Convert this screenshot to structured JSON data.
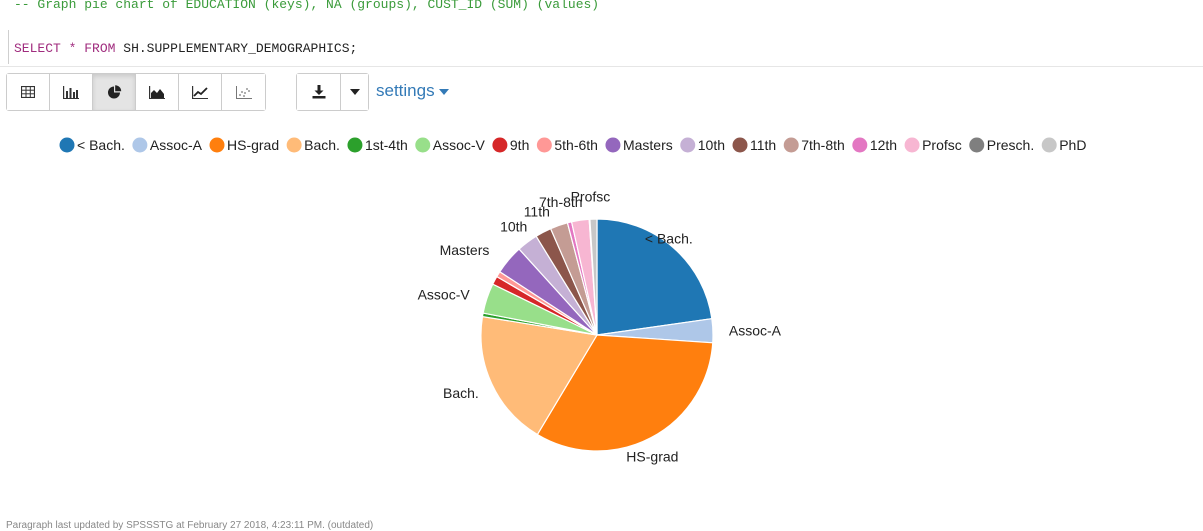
{
  "editor": {
    "comment": "-- Graph pie chart of EDUCATION (keys), NA (groups), CUST_ID (SUM) (values)",
    "select_keyword": "SELECT",
    "select_star": "*",
    "from_keyword": "FROM",
    "table_name": "SH.SUPPLEMENTARY_DEMOGRAPHICS",
    "terminator": ";"
  },
  "toolbar": {
    "view_buttons": [
      {
        "name": "table-view-button",
        "icon": "table-icon",
        "active": false
      },
      {
        "name": "bar-chart-button",
        "icon": "bar-chart-icon",
        "active": false
      },
      {
        "name": "pie-chart-button",
        "icon": "pie-chart-icon",
        "active": true
      },
      {
        "name": "area-chart-button",
        "icon": "area-chart-icon",
        "active": false
      },
      {
        "name": "line-chart-button",
        "icon": "line-chart-icon",
        "active": false
      },
      {
        "name": "scatter-chart-button",
        "icon": "scatter-chart-icon",
        "active": false
      }
    ],
    "download_icon": "download-icon",
    "dropdown_icon": "caret-down-icon",
    "settings_label": "settings"
  },
  "footer": {
    "text": "Paragraph last updated by SPSSSTG at February 27 2018, 4:23:11 PM. (outdated)"
  },
  "chart_data": {
    "type": "pie",
    "categories": [
      "< Bach.",
      "Assoc-A",
      "HS-grad",
      "Bach.",
      "1st-4th",
      "Assoc-V",
      "9th",
      "5th-6th",
      "Masters",
      "10th",
      "11th",
      "7th-8th",
      "12th",
      "Profsc",
      "Presch.",
      "PhD"
    ],
    "values": [
      23.3,
      3.4,
      33.3,
      19.4,
      0.5,
      4.3,
      1.2,
      0.8,
      4.2,
      3.0,
      2.3,
      2.5,
      0.6,
      2.5,
      0.1,
      1.0
    ],
    "colors": [
      "#1f77b4",
      "#aec7e8",
      "#ff7f0e",
      "#ffbb78",
      "#2ca02c",
      "#98df8a",
      "#d62728",
      "#ff9896",
      "#9467bd",
      "#c5b0d5",
      "#8c564b",
      "#c49c94",
      "#e377c2",
      "#f7b6d2",
      "#7f7f7f",
      "#c7c7c7"
    ],
    "labels_shown": [
      "< Bach.",
      "Assoc-A",
      "HS-grad",
      "Bach.",
      "Assoc-V",
      "Masters",
      "10th",
      "11th",
      "7th-8th",
      "Profsc"
    ],
    "legend_position": "top"
  }
}
